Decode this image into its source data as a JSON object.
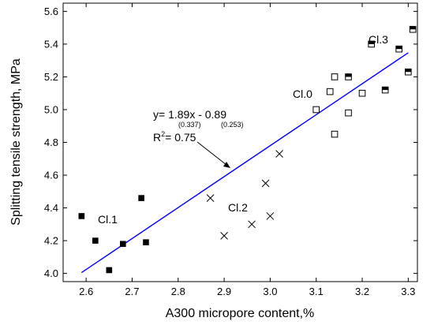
{
  "chart_data": {
    "type": "scatter",
    "xlabel": "A300 micropore content,%",
    "ylabel": "Splitting tensile strength, MPa",
    "xlim": [
      2.55,
      3.32
    ],
    "ylim": [
      3.95,
      5.65
    ],
    "x_ticks": [
      "2.6",
      "2.7",
      "2.8",
      "2.9",
      "3.0",
      "3.1",
      "3.2",
      "3.3"
    ],
    "y_ticks": [
      "4.0",
      "4.2",
      "4.4",
      "4.6",
      "4.8",
      "5.0",
      "5.2",
      "5.4",
      "5.6"
    ],
    "grid": false,
    "series": [
      {
        "name": "Cl.1",
        "marker": "filled-square",
        "points": [
          [
            2.59,
            4.35
          ],
          [
            2.62,
            4.2
          ],
          [
            2.65,
            4.02
          ],
          [
            2.68,
            4.18
          ],
          [
            2.72,
            4.46
          ],
          [
            2.73,
            4.19
          ]
        ]
      },
      {
        "name": "Cl.2",
        "marker": "cross",
        "points": [
          [
            2.87,
            4.46
          ],
          [
            2.9,
            4.23
          ],
          [
            2.96,
            4.3
          ],
          [
            2.99,
            4.55
          ],
          [
            3.0,
            4.35
          ],
          [
            3.02,
            4.73
          ]
        ]
      },
      {
        "name": "Cl.0",
        "marker": "open-square",
        "points": [
          [
            3.1,
            5.0
          ],
          [
            3.13,
            5.11
          ],
          [
            3.14,
            5.2
          ],
          [
            3.14,
            4.85
          ],
          [
            3.17,
            4.98
          ],
          [
            3.2,
            5.1
          ]
        ]
      },
      {
        "name": "Cl.3",
        "marker": "half-filled-square",
        "points": [
          [
            3.17,
            5.2
          ],
          [
            3.22,
            5.4
          ],
          [
            3.25,
            5.12
          ],
          [
            3.28,
            5.37
          ],
          [
            3.3,
            5.23
          ],
          [
            3.31,
            5.49
          ]
        ]
      }
    ],
    "fit_line": {
      "slope": 1.89,
      "intercept": -0.89,
      "x_range": [
        2.59,
        3.3
      ],
      "color": "#0000ff"
    },
    "annotations": {
      "equation": "y=  1.89x - 0.89",
      "slope_se": "(0.337)",
      "intercept_se": "(0.253)",
      "r2_prefix": "R",
      "r2_sup": "2",
      "r2_value": "= 0.75"
    }
  }
}
